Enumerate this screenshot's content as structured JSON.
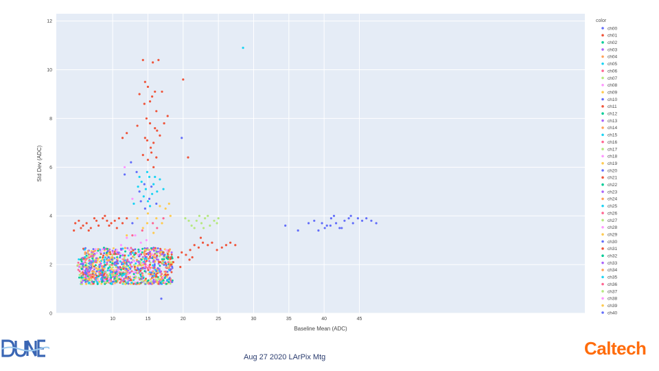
{
  "chart_data": {
    "type": "scatter",
    "title": "",
    "xlabel": "Baseline Mean (ADC)",
    "ylabel": "Std Dev (ADC)",
    "xlim": [
      2,
      77
    ],
    "ylim": [
      0,
      12.3
    ],
    "xticks": [
      10,
      15,
      20,
      25,
      30,
      35,
      40,
      45
    ],
    "xtick_labels": [
      "10",
      "15",
      "20",
      "25",
      "30",
      "35",
      "40",
      "45"
    ],
    "yticks": [
      0,
      2,
      4,
      6,
      8,
      10,
      12
    ],
    "ytick_labels": [
      "0",
      "2",
      "4",
      "6",
      "8",
      "10",
      "12"
    ],
    "grid": true,
    "legend": {
      "title": "color",
      "placement": "right"
    },
    "series": [
      {
        "name": "ch00",
        "color": "#636efa"
      },
      {
        "name": "ch01",
        "color": "#ef553b"
      },
      {
        "name": "ch02",
        "color": "#00cc96"
      },
      {
        "name": "ch03",
        "color": "#ab63fa"
      },
      {
        "name": "ch04",
        "color": "#ffa15a"
      },
      {
        "name": "ch05",
        "color": "#19d3f3"
      },
      {
        "name": "ch06",
        "color": "#ff6692"
      },
      {
        "name": "ch07",
        "color": "#b6e880"
      },
      {
        "name": "ch08",
        "color": "#ff97ff"
      },
      {
        "name": "ch09",
        "color": "#fecb52"
      },
      {
        "name": "ch10",
        "color": "#636efa"
      },
      {
        "name": "ch11",
        "color": "#ef553b"
      },
      {
        "name": "ch12",
        "color": "#00cc96"
      },
      {
        "name": "ch13",
        "color": "#ab63fa"
      },
      {
        "name": "ch14",
        "color": "#ffa15a"
      },
      {
        "name": "ch15",
        "color": "#19d3f3"
      },
      {
        "name": "ch16",
        "color": "#ff6692"
      },
      {
        "name": "ch17",
        "color": "#b6e880"
      },
      {
        "name": "ch18",
        "color": "#ff97ff"
      },
      {
        "name": "ch19",
        "color": "#fecb52"
      },
      {
        "name": "ch20",
        "color": "#636efa"
      },
      {
        "name": "ch21",
        "color": "#ef553b"
      },
      {
        "name": "ch22",
        "color": "#00cc96"
      },
      {
        "name": "ch23",
        "color": "#ab63fa"
      },
      {
        "name": "ch24",
        "color": "#ffa15a"
      },
      {
        "name": "ch25",
        "color": "#19d3f3"
      },
      {
        "name": "ch26",
        "color": "#ff6692"
      },
      {
        "name": "ch27",
        "color": "#b6e880"
      },
      {
        "name": "ch28",
        "color": "#ff97ff"
      },
      {
        "name": "ch29",
        "color": "#fecb52"
      },
      {
        "name": "ch30",
        "color": "#636efa"
      },
      {
        "name": "ch31",
        "color": "#ef553b"
      },
      {
        "name": "ch32",
        "color": "#00cc96"
      },
      {
        "name": "ch33",
        "color": "#ab63fa"
      },
      {
        "name": "ch34",
        "color": "#ffa15a"
      },
      {
        "name": "ch35",
        "color": "#19d3f3"
      },
      {
        "name": "ch36",
        "color": "#ff6692"
      },
      {
        "name": "ch37",
        "color": "#b6e880"
      },
      {
        "name": "ch38",
        "color": "#ff97ff"
      },
      {
        "name": "ch39",
        "color": "#fecb52"
      },
      {
        "name": "ch40",
        "color": "#636efa"
      }
    ],
    "points": [
      [
        4.5,
        3.4,
        1
      ],
      [
        5.2,
        3.8,
        1
      ],
      [
        5.8,
        3.6,
        1
      ],
      [
        6.3,
        3.7,
        1
      ],
      [
        6.9,
        3.5,
        1
      ],
      [
        7.4,
        3.9,
        1
      ],
      [
        8.0,
        3.6,
        1
      ],
      [
        8.6,
        3.9,
        1
      ],
      [
        9.2,
        3.8,
        1
      ],
      [
        9.8,
        3.7,
        1
      ],
      [
        10.3,
        3.8,
        1
      ],
      [
        10.9,
        3.9,
        1
      ],
      [
        11.4,
        3.7,
        1
      ],
      [
        7.7,
        3.8,
        1
      ],
      [
        8.9,
        4.0,
        1
      ],
      [
        6.6,
        3.4,
        1
      ],
      [
        5.5,
        3.5,
        1
      ],
      [
        9.5,
        3.6,
        1
      ],
      [
        10.6,
        3.5,
        1
      ],
      [
        12.0,
        3.9,
        1
      ],
      [
        4.7,
        3.7,
        1
      ],
      [
        14.3,
        10.4,
        11
      ],
      [
        15.7,
        10.3,
        11
      ],
      [
        16.5,
        10.4,
        11
      ],
      [
        14.6,
        9.5,
        11
      ],
      [
        15.0,
        9.3,
        11
      ],
      [
        15.6,
        8.9,
        11
      ],
      [
        16.0,
        9.1,
        11
      ],
      [
        15.3,
        8.7,
        11
      ],
      [
        14.5,
        8.6,
        11
      ],
      [
        16.2,
        8.3,
        11
      ],
      [
        14.8,
        8.0,
        11
      ],
      [
        15.3,
        7.8,
        11
      ],
      [
        16.0,
        7.6,
        11
      ],
      [
        14.6,
        7.2,
        11
      ],
      [
        15.8,
        7.0,
        11
      ],
      [
        16.7,
        7.3,
        11
      ],
      [
        15.4,
        6.8,
        11
      ],
      [
        14.3,
        6.5,
        11
      ],
      [
        15.0,
        6.3,
        11
      ],
      [
        16.2,
        6.4,
        11
      ],
      [
        11.4,
        7.2,
        11
      ],
      [
        12.0,
        7.4,
        11
      ],
      [
        15.8,
        6.0,
        11
      ],
      [
        17.3,
        7.8,
        11
      ],
      [
        20.0,
        9.6,
        11
      ],
      [
        17.0,
        9.1,
        11
      ],
      [
        20.7,
        6.4,
        11
      ],
      [
        13.5,
        7.7,
        11
      ],
      [
        15.5,
        6.6,
        11
      ],
      [
        14.9,
        7.1,
        11
      ],
      [
        16.3,
        7.5,
        11
      ],
      [
        17.8,
        8.1,
        11
      ],
      [
        13.8,
        9.0,
        11
      ],
      [
        13.0,
        4.5,
        15
      ],
      [
        13.6,
        5.2,
        15
      ],
      [
        14.1,
        5.4,
        15
      ],
      [
        14.7,
        5.1,
        15
      ],
      [
        15.2,
        5.6,
        15
      ],
      [
        15.8,
        5.3,
        15
      ],
      [
        16.3,
        5.0,
        15
      ],
      [
        14.4,
        4.8,
        15
      ],
      [
        15.0,
        4.6,
        15
      ],
      [
        15.6,
        4.9,
        15
      ],
      [
        16.7,
        5.5,
        15
      ],
      [
        17.2,
        5.1,
        15
      ],
      [
        13.8,
        5.6,
        15
      ],
      [
        15.3,
        4.4,
        15
      ],
      [
        14.9,
        5.8,
        15
      ],
      [
        16.0,
        5.6,
        15
      ],
      [
        11.7,
        5.7,
        10
      ],
      [
        12.6,
        6.2,
        10
      ],
      [
        13.4,
        5.8,
        10
      ],
      [
        14.0,
        4.6,
        10
      ],
      [
        14.6,
        4.3,
        10
      ],
      [
        15.2,
        4.7,
        10
      ],
      [
        16.2,
        4.5,
        10
      ],
      [
        13.8,
        5.0,
        10
      ],
      [
        15.5,
        5.2,
        10
      ],
      [
        19.8,
        7.2,
        10
      ],
      [
        14.5,
        5.3,
        10
      ],
      [
        12.8,
        3.7,
        10
      ],
      [
        15.0,
        4.1,
        9
      ],
      [
        16.2,
        3.9,
        9
      ],
      [
        17.5,
        4.3,
        9
      ],
      [
        18.2,
        4.0,
        9
      ],
      [
        14.3,
        3.5,
        9
      ],
      [
        15.8,
        3.3,
        9
      ],
      [
        17.0,
        3.7,
        9
      ],
      [
        13.5,
        3.9,
        9
      ],
      [
        16.7,
        4.4,
        9
      ],
      [
        14.9,
        3.7,
        9
      ],
      [
        18.0,
        4.5,
        9
      ],
      [
        12.0,
        3.2,
        9
      ],
      [
        20.3,
        3.9,
        17
      ],
      [
        21.2,
        3.6,
        17
      ],
      [
        21.9,
        3.8,
        17
      ],
      [
        22.6,
        3.7,
        17
      ],
      [
        23.1,
        3.9,
        17
      ],
      [
        23.8,
        3.6,
        17
      ],
      [
        24.4,
        3.8,
        17
      ],
      [
        25.0,
        3.9,
        17
      ],
      [
        22.3,
        4.0,
        17
      ],
      [
        21.6,
        3.5,
        17
      ],
      [
        23.5,
        4.0,
        17
      ],
      [
        24.8,
        3.7,
        17
      ],
      [
        20.8,
        3.8,
        17
      ],
      [
        22.9,
        3.5,
        17
      ],
      [
        15.7,
        3.7,
        16
      ],
      [
        16.3,
        3.5,
        16
      ],
      [
        17.2,
        3.9,
        16
      ],
      [
        12.8,
        3.2,
        16
      ],
      [
        14.2,
        3.4,
        16
      ],
      [
        11.7,
        6.0,
        18
      ],
      [
        12.8,
        4.7,
        18
      ],
      [
        13.2,
        3.2,
        18
      ],
      [
        14.0,
        2.9,
        18
      ],
      [
        11.2,
        2.8,
        18
      ],
      [
        12.4,
        2.6,
        18
      ],
      [
        13.6,
        2.4,
        18
      ],
      [
        10.6,
        2.6,
        18
      ],
      [
        12.0,
        3.1,
        18
      ],
      [
        14.8,
        3.0,
        18
      ],
      [
        18.6,
        2.1,
        21
      ],
      [
        19.3,
        2.3,
        21
      ],
      [
        19.8,
        2.5,
        21
      ],
      [
        20.4,
        2.4,
        21
      ],
      [
        21.0,
        2.6,
        21
      ],
      [
        21.6,
        2.8,
        21
      ],
      [
        22.2,
        2.7,
        21
      ],
      [
        22.8,
        2.9,
        21
      ],
      [
        23.5,
        2.8,
        21
      ],
      [
        24.1,
        2.9,
        21
      ],
      [
        24.8,
        2.6,
        21
      ],
      [
        25.5,
        2.7,
        21
      ],
      [
        26.1,
        2.8,
        21
      ],
      [
        26.7,
        2.9,
        21
      ],
      [
        27.4,
        2.8,
        21
      ],
      [
        17.9,
        2.3,
        21
      ],
      [
        18.3,
        2.0,
        21
      ],
      [
        20.9,
        2.2,
        21
      ],
      [
        22.5,
        3.1,
        21
      ],
      [
        19.6,
        1.9,
        21
      ],
      [
        21.3,
        2.3,
        21
      ],
      [
        17.2,
        2.5,
        21
      ],
      [
        16.6,
        2.1,
        21
      ],
      [
        38.6,
        3.8,
        30
      ],
      [
        39.7,
        3.7,
        30
      ],
      [
        40.4,
        3.6,
        30
      ],
      [
        41.0,
        3.9,
        30
      ],
      [
        41.7,
        3.7,
        30
      ],
      [
        42.2,
        3.5,
        30
      ],
      [
        42.9,
        3.8,
        30
      ],
      [
        43.5,
        3.9,
        30
      ],
      [
        44.1,
        3.7,
        30
      ],
      [
        44.8,
        3.9,
        30
      ],
      [
        45.4,
        3.8,
        30
      ],
      [
        46.0,
        3.9,
        30
      ],
      [
        46.7,
        3.8,
        30
      ],
      [
        37.8,
        3.7,
        30
      ],
      [
        39.2,
        3.4,
        30
      ],
      [
        40.9,
        3.6,
        30
      ],
      [
        42.5,
        3.5,
        30
      ],
      [
        43.8,
        4.0,
        30
      ],
      [
        36.3,
        3.4,
        30
      ],
      [
        34.5,
        3.6,
        30
      ],
      [
        47.4,
        3.7,
        30
      ],
      [
        41.4,
        4.0,
        30
      ],
      [
        40.1,
        3.5,
        30
      ],
      [
        28.5,
        10.9,
        25
      ],
      [
        16.9,
        0.6,
        20
      ]
    ],
    "cluster": {
      "x_range": [
        5.5,
        18.5
      ],
      "y_range": [
        1.2,
        2.7
      ],
      "count": 950,
      "x_range_b": [
        5.0,
        12.5
      ],
      "y_range_b": [
        1.3,
        2.3
      ],
      "count_b": 220
    }
  },
  "footer": {
    "text": "Aug 27 2020 LArPix Mtg"
  },
  "logos": {
    "left": "DUNE",
    "right": "Caltech"
  }
}
